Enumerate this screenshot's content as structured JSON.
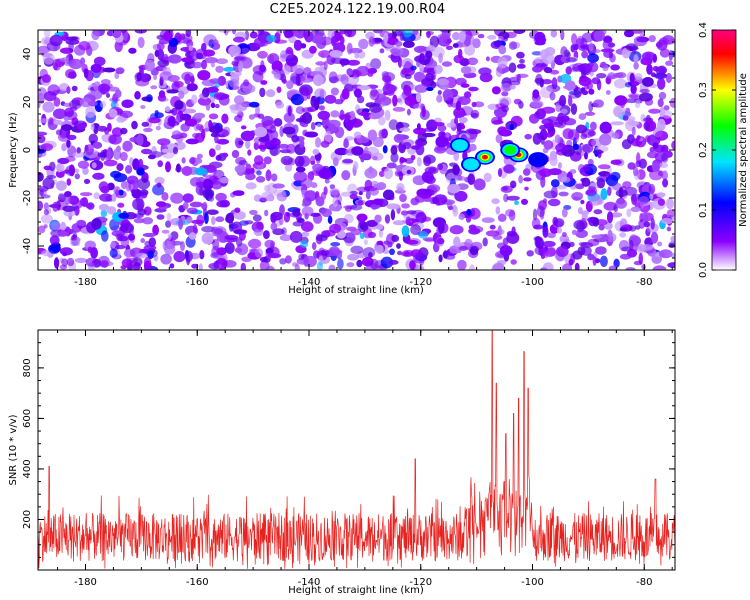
{
  "title": "C2E5.2024.122.19.00.R04",
  "chart_data": [
    {
      "type": "heatmap",
      "xlabel": "Height of straight line (km)",
      "ylabel": "Frequency (Hz)",
      "xlim": [
        -188.5,
        -74.5
      ],
      "ylim": [
        -50,
        50
      ],
      "xticks": [
        "-180",
        "-160",
        "-140",
        "-120",
        "-100",
        "-80"
      ],
      "yticks": [
        "-40",
        "-20",
        "0",
        "20",
        "40"
      ],
      "colorbar": {
        "label": "Normalized spectral amplitude",
        "range": [
          0,
          0.4
        ],
        "ticks": [
          "0.0",
          "0.1",
          "0.2",
          "0.3",
          "0.4"
        ],
        "colors": [
          "#ffffff",
          "#8a00ff",
          "#0000ff",
          "#00e5ff",
          "#00ff00",
          "#ffff00",
          "#ff0000",
          "#ff0080"
        ]
      },
      "background_level": 0.05,
      "hotspots": [
        {
          "x": -108.5,
          "y": -3,
          "value": 0.35
        },
        {
          "x": -102.5,
          "y": -2,
          "value": 0.32
        },
        {
          "x": -104,
          "y": 0,
          "value": 0.2
        },
        {
          "x": -111,
          "y": -6,
          "value": 0.12
        },
        {
          "x": -113,
          "y": 2,
          "value": 0.1
        },
        {
          "x": -99,
          "y": -4,
          "value": 0.09
        }
      ],
      "low_bands": [
        {
          "x_from": -110,
          "x_to": -106.5
        },
        {
          "x_from": -103,
          "x_to": -99.5
        }
      ]
    },
    {
      "type": "line",
      "xlabel": "Height of straight line (km)",
      "ylabel": "SNR (10 * v/v)",
      "xlim": [
        -188.5,
        -74.5
      ],
      "ylim": [
        0,
        950
      ],
      "xticks": [
        "-180",
        "-160",
        "-140",
        "-120",
        "-100",
        "-80"
      ],
      "yticks": [
        "200",
        "400",
        "600",
        "800"
      ],
      "color": "#e8221f",
      "baseline_mean": 130,
      "baseline_spread": 120,
      "peaks": [
        {
          "x": -107.2,
          "y": 950
        },
        {
          "x": -106.5,
          "y": 740
        },
        {
          "x": -104.8,
          "y": 540
        },
        {
          "x": -103.4,
          "y": 620
        },
        {
          "x": -102.5,
          "y": 680
        },
        {
          "x": -101.5,
          "y": 865
        },
        {
          "x": -100.8,
          "y": 720
        },
        {
          "x": -186.5,
          "y": 410
        },
        {
          "x": -121,
          "y": 440
        },
        {
          "x": -78,
          "y": 360
        }
      ]
    }
  ]
}
